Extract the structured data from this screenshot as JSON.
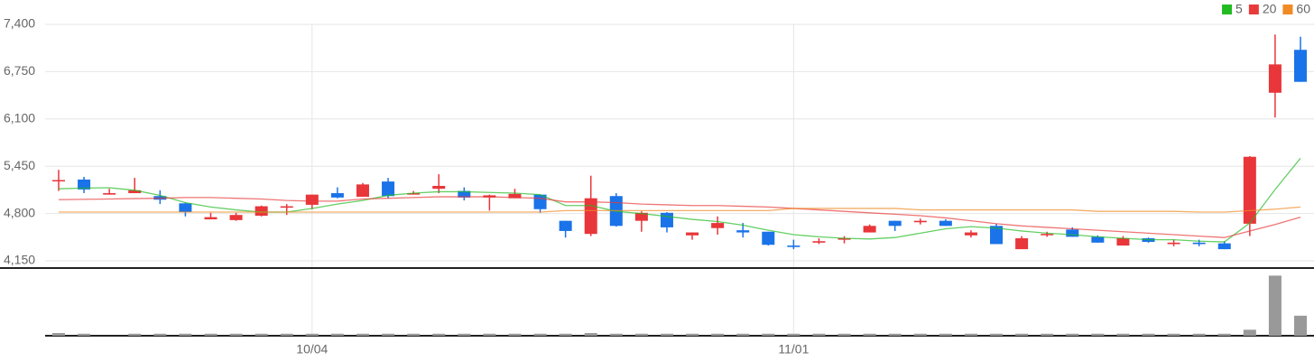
{
  "chart_data": {
    "type": "candlestick",
    "categories": [
      null,
      null,
      null,
      null,
      null,
      null,
      null,
      null,
      null,
      null,
      "10/04",
      null,
      null,
      null,
      null,
      null,
      null,
      null,
      null,
      null,
      null,
      null,
      null,
      null,
      null,
      null,
      null,
      null,
      null,
      "11/01",
      null,
      null,
      null,
      null,
      null,
      null,
      null,
      null,
      null,
      null,
      null,
      null,
      null,
      null,
      null,
      null,
      null,
      null,
      null,
      null
    ],
    "open": [
      5250,
      5267,
      5060,
      5080,
      5040,
      4940,
      4720,
      4710,
      4770,
      4880,
      4920,
      5080,
      5030,
      5240,
      5060,
      5140,
      5110,
      5020,
      5010,
      5060,
      4700,
      4520,
      5040,
      4700,
      4810,
      4500,
      4600,
      4570,
      4550,
      4360,
      4400,
      4440,
      4540,
      4700,
      4680,
      4700,
      4500,
      4630,
      4310,
      4510,
      4580,
      4480,
      4360,
      4460,
      4380,
      4400,
      4390,
      4660,
      6460,
      7050
    ],
    "high": [
      5400,
      5304,
      5140,
      5290,
      5120,
      4950,
      4810,
      4810,
      4910,
      4930,
      5060,
      5160,
      5220,
      5290,
      5110,
      5340,
      5160,
      5060,
      5140,
      5060,
      4700,
      5320,
      5080,
      4830,
      4820,
      4540,
      4760,
      4670,
      4550,
      4440,
      4460,
      4490,
      4650,
      4700,
      4730,
      4720,
      4570,
      4660,
      4490,
      4550,
      4610,
      4500,
      4490,
      4470,
      4440,
      4440,
      4420,
      5590,
      7260,
      7230
    ],
    "low": [
      5110,
      5081,
      5060,
      5080,
      4930,
      4760,
      4720,
      4700,
      4760,
      4780,
      4860,
      5010,
      5030,
      5010,
      5060,
      5080,
      4980,
      4840,
      5010,
      4810,
      4470,
      4490,
      4620,
      4550,
      4540,
      4440,
      4510,
      4470,
      4360,
      4310,
      4380,
      4390,
      4540,
      4560,
      4650,
      4630,
      4470,
      4380,
      4310,
      4480,
      4480,
      4400,
      4360,
      4400,
      4350,
      4350,
      4310,
      4490,
      6120,
      6610
    ],
    "close": [
      5260,
      5131,
      5080,
      5120,
      4990,
      4820,
      4750,
      4780,
      4900,
      4900,
      5060,
      5020,
      5200,
      5040,
      5080,
      5180,
      5020,
      5050,
      5070,
      4860,
      4560,
      5010,
      4630,
      4810,
      4610,
      4540,
      4670,
      4540,
      4370,
      4340,
      4420,
      4460,
      4630,
      4630,
      4700,
      4630,
      4540,
      4380,
      4460,
      4520,
      4480,
      4400,
      4460,
      4410,
      4400,
      4380,
      4310,
      5580,
      6850,
      6610
    ],
    "volume": [
      4,
      3,
      0,
      3,
      3,
      3,
      3,
      3,
      3,
      3,
      3,
      3,
      3,
      3,
      3,
      3,
      3,
      3,
      3,
      3,
      3,
      4,
      3,
      3,
      3,
      3,
      3,
      3,
      3,
      3,
      3,
      3,
      3,
      3,
      3,
      3,
      3,
      3,
      3,
      3,
      3,
      3,
      3,
      3,
      3,
      3,
      3,
      9,
      90,
      30
    ],
    "vlim": [
      0,
      100
    ],
    "up_color": "#e8363a",
    "down_color": "#1a73e8",
    "volume_color": "#999999",
    "series": [
      {
        "name": "5",
        "color": "#22bb22",
        "values": [
          5140,
          5150,
          5155,
          5120,
          5050,
          4950,
          4890,
          4850,
          4820,
          4820,
          4870,
          4930,
          4980,
          5050,
          5080,
          5100,
          5100,
          5090,
          5080,
          5060,
          4910,
          4910,
          4830,
          4800,
          4760,
          4720,
          4690,
          4640,
          4570,
          4510,
          4480,
          4460,
          4450,
          4470,
          4530,
          4590,
          4620,
          4600,
          4560,
          4530,
          4510,
          4480,
          4460,
          4440,
          4440,
          4420,
          4410,
          4670,
          5130,
          5560
        ]
      },
      {
        "name": "20",
        "color": "#e83a3a",
        "values": [
          4990,
          4995,
          5000,
          5005,
          5010,
          5020,
          5020,
          5010,
          5000,
          4980,
          4970,
          4970,
          5000,
          5010,
          5020,
          5030,
          5030,
          5030,
          5020,
          5010,
          4960,
          4960,
          4950,
          4930,
          4920,
          4910,
          4910,
          4900,
          4890,
          4870,
          4850,
          4830,
          4810,
          4790,
          4770,
          4740,
          4700,
          4660,
          4630,
          4610,
          4590,
          4570,
          4550,
          4530,
          4510,
          4490,
          4470,
          4560,
          4650,
          4750
        ]
      },
      {
        "name": "60",
        "color": "#f08a24",
        "values": [
          4820,
          4820,
          4820,
          4820,
          4820,
          4820,
          4820,
          4820,
          4820,
          4820,
          4820,
          4820,
          4820,
          4820,
          4820,
          4820,
          4820,
          4820,
          4820,
          4820,
          4840,
          4840,
          4840,
          4840,
          4840,
          4840,
          4840,
          4840,
          4840,
          4870,
          4870,
          4870,
          4870,
          4870,
          4850,
          4850,
          4850,
          4850,
          4850,
          4850,
          4850,
          4830,
          4830,
          4830,
          4830,
          4820,
          4820,
          4840,
          4860,
          4890
        ]
      }
    ],
    "ylim": [
      4150,
      7400
    ],
    "yticks": [
      {
        "value": 4150,
        "label": "4,150"
      },
      {
        "value": 4800,
        "label": "4,800"
      },
      {
        "value": 5450,
        "label": "5,450"
      },
      {
        "value": 6100,
        "label": "6,100"
      },
      {
        "value": 6750,
        "label": "6,750"
      },
      {
        "value": 7400,
        "label": "7,400"
      }
    ],
    "grid": true
  }
}
